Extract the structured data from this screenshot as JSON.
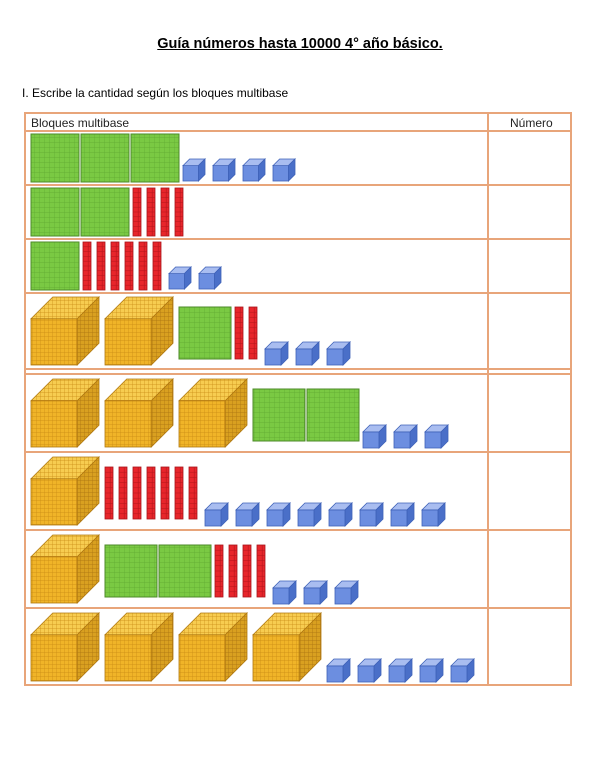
{
  "title": "Guía números hasta 10000 4° año básico.",
  "instruction": "I. Escribe la cantidad según los bloques multibase",
  "table": {
    "headers": {
      "blocks": "Bloques multibase",
      "number": "Número"
    },
    "rows": [
      {
        "thousands": 0,
        "hundreds": 3,
        "tens": 0,
        "units": 4,
        "answer": ""
      },
      {
        "thousands": 0,
        "hundreds": 2,
        "tens": 4,
        "units": 0,
        "answer": ""
      },
      {
        "thousands": 0,
        "hundreds": 1,
        "tens": 6,
        "units": 2,
        "answer": ""
      },
      {
        "thousands": 2,
        "hundreds": 1,
        "tens": 2,
        "units": 3,
        "answer": ""
      },
      {
        "thousands": 3,
        "hundreds": 2,
        "tens": 0,
        "units": 3,
        "answer": ""
      },
      {
        "thousands": 1,
        "hundreds": 0,
        "tens": 7,
        "units": 8,
        "answer": ""
      },
      {
        "thousands": 1,
        "hundreds": 2,
        "tens": 4,
        "units": 3,
        "answer": ""
      },
      {
        "thousands": 4,
        "hundreds": 0,
        "tens": 0,
        "units": 5,
        "answer": ""
      }
    ]
  },
  "colors": {
    "border": "#e8a57a",
    "thousand": "#f0b428",
    "thousand_dark": "#c98a14",
    "hundred": "#7ac943",
    "hundred_grid": "#5fa832",
    "ten": "#e8262b",
    "unit": "#6c8ee0",
    "unit_dark": "#3f62b8"
  }
}
